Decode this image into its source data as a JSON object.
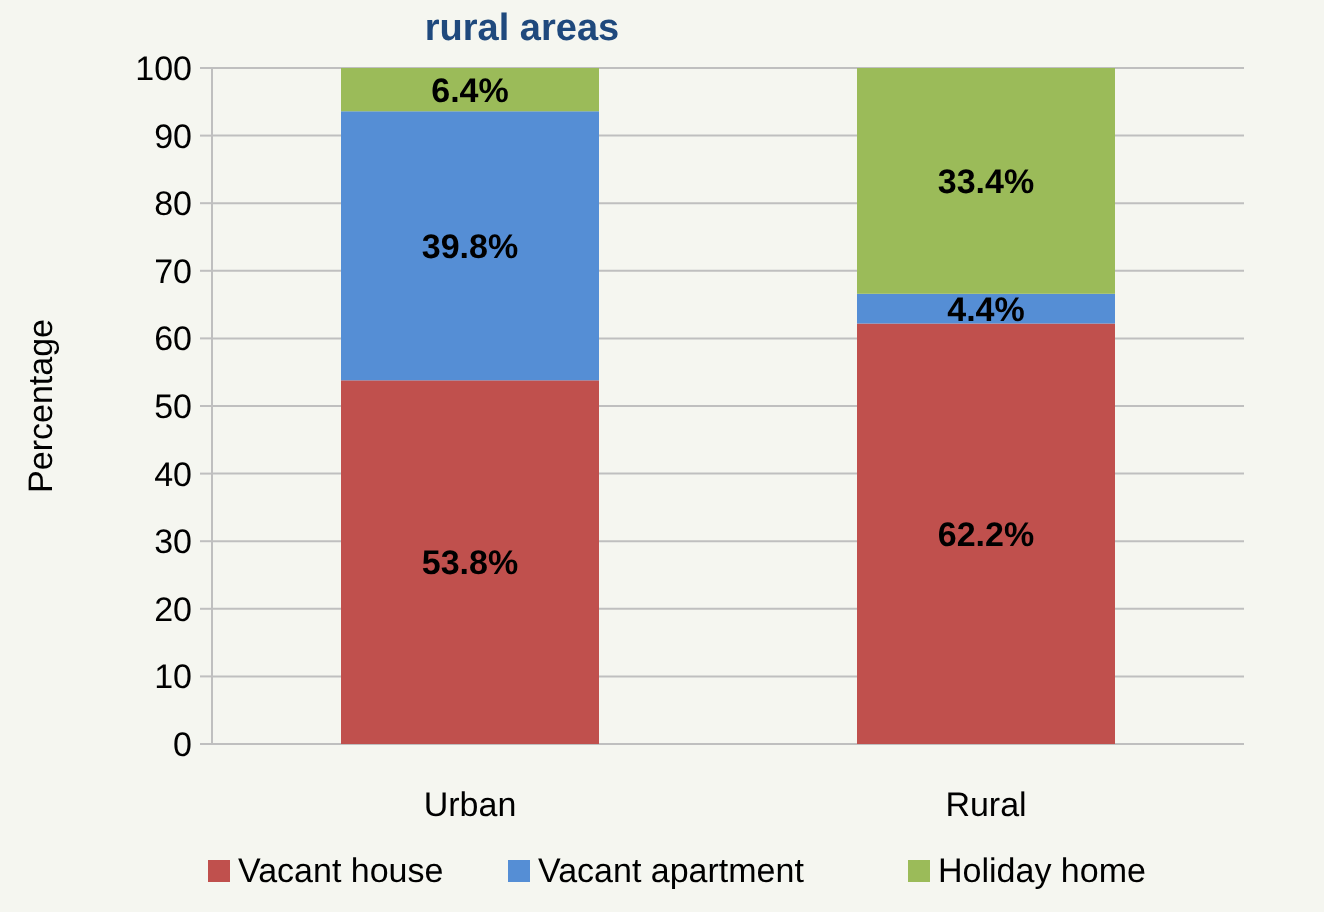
{
  "chart_data": {
    "type": "bar",
    "title": "rural areas",
    "ylabel": "Percentage",
    "categories": [
      "Urban",
      "Rural"
    ],
    "stacked": true,
    "series": [
      {
        "name": "Vacant house",
        "color": "#c0504d",
        "values": [
          53.8,
          62.2
        ],
        "value_labels": [
          "53.8%",
          "62.2%"
        ]
      },
      {
        "name": "Vacant apartment",
        "color": "#558ed5",
        "values": [
          39.8,
          4.4
        ],
        "value_labels": [
          "39.8%",
          "4.4%"
        ]
      },
      {
        "name": "Holiday home",
        "color": "#9bbb59",
        "values": [
          6.4,
          33.4
        ],
        "value_labels": [
          "6.4%",
          "33.4%"
        ]
      }
    ],
    "ylim": [
      0,
      100
    ],
    "yticks": [
      0,
      10,
      20,
      30,
      40,
      50,
      60,
      70,
      80,
      90,
      100
    ],
    "grid": "y",
    "legend": "bottom"
  }
}
